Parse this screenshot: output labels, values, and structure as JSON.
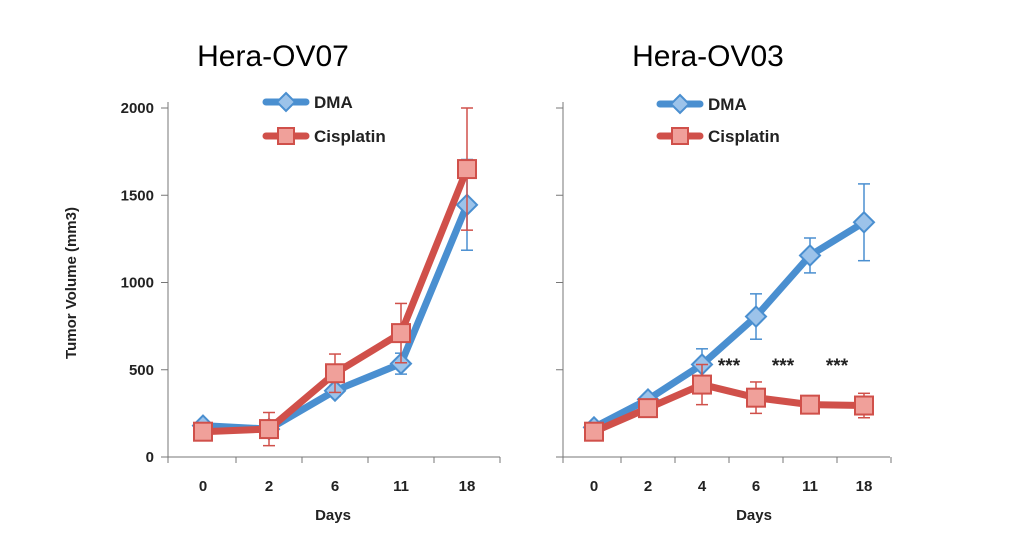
{
  "chart_data": [
    {
      "type": "line",
      "title": "Hera-OV07",
      "xlabel": "Days",
      "ylabel": "Tumor Volume (mm3)",
      "categories": [
        "0",
        "2",
        "6",
        "11",
        "18"
      ],
      "ylim": [
        0,
        2000
      ],
      "yticks": [
        0,
        500,
        1000,
        1500,
        2000
      ],
      "legend_position": "top",
      "series": [
        {
          "name": "DMA",
          "color": "#4a8fd0",
          "marker": "diamond",
          "values": [
            180,
            160,
            380,
            535,
            1445
          ],
          "errors": [
            null,
            null,
            30,
            60,
            260
          ]
        },
        {
          "name": "Cisplatin",
          "color": "#d0504a",
          "marker": "square",
          "values": [
            145,
            160,
            480,
            710,
            1650
          ],
          "errors": [
            null,
            95,
            110,
            170,
            350
          ]
        }
      ],
      "annotations": []
    },
    {
      "type": "line",
      "title": "Hera-OV03",
      "xlabel": "Days",
      "ylabel": "",
      "categories": [
        "0",
        "2",
        "4",
        "6",
        "11",
        "18"
      ],
      "ylim": [
        0,
        2000
      ],
      "yticks": [
        0,
        500,
        1000,
        1500,
        2000
      ],
      "legend_position": "top",
      "series": [
        {
          "name": "DMA",
          "color": "#4a8fd0",
          "marker": "diamond",
          "values": [
            170,
            330,
            530,
            805,
            1155,
            1345
          ],
          "errors": [
            null,
            null,
            90,
            130,
            100,
            220
          ]
        },
        {
          "name": "Cisplatin",
          "color": "#d0504a",
          "marker": "square",
          "values": [
            145,
            280,
            415,
            340,
            300,
            295
          ],
          "errors": [
            null,
            null,
            115,
            90,
            null,
            70
          ]
        }
      ],
      "annotations": [
        {
          "text": "***",
          "between": [
            2,
            3
          ]
        },
        {
          "text": "***",
          "between": [
            3,
            4
          ]
        },
        {
          "text": "***",
          "between": [
            4,
            5
          ]
        }
      ]
    }
  ]
}
